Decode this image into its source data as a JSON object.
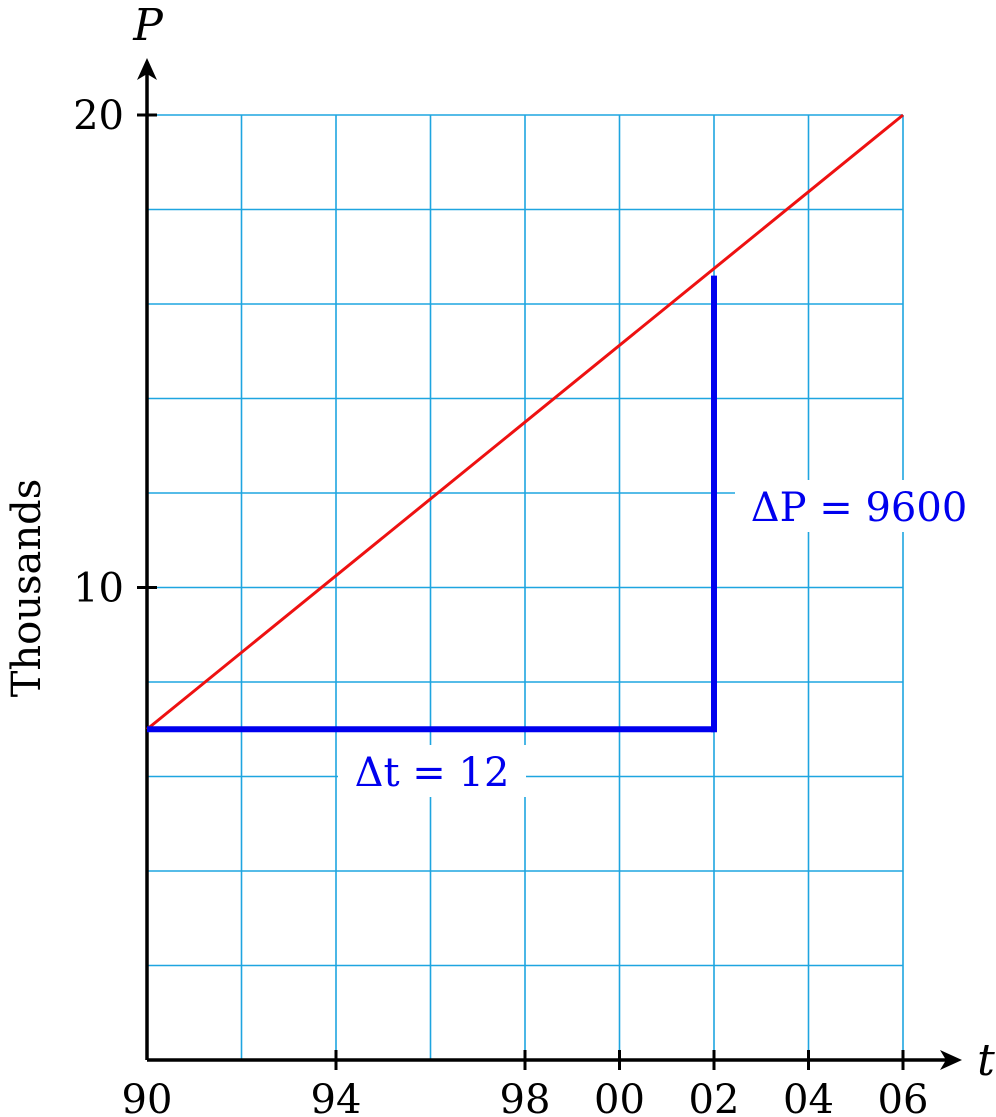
{
  "chart_data": {
    "type": "line",
    "title": "",
    "xlabel": "t",
    "ylabel": "P",
    "yunit_label": "Thousands",
    "xlim": [
      1990,
      2008
    ],
    "ylim": [
      0,
      20
    ],
    "grid": true,
    "x_ticks": [
      {
        "value": 1990,
        "label": "90"
      },
      {
        "value": 1994,
        "label": "94"
      },
      {
        "value": 1998,
        "label": "98"
      },
      {
        "value": 2000,
        "label": "00"
      },
      {
        "value": 2002,
        "label": "02"
      },
      {
        "value": 2004,
        "label": "04"
      },
      {
        "value": 2006,
        "label": "06"
      }
    ],
    "y_ticks": [
      {
        "value": 10,
        "label": "10"
      },
      {
        "value": 20,
        "label": "20"
      }
    ],
    "series": [
      {
        "x": [
          1990,
          2006
        ],
        "y": [
          7,
          20
        ],
        "color": "#ee1111"
      }
    ],
    "slope_triangle": {
      "x_start": 1990,
      "x_end": 2002,
      "y_start": 7,
      "y_end": 16.6,
      "color": "#0000ee",
      "delta_t_label": "Δt = 12",
      "delta_p_label": "ΔP = 9600"
    },
    "grid_color": "#1ea5e0"
  }
}
